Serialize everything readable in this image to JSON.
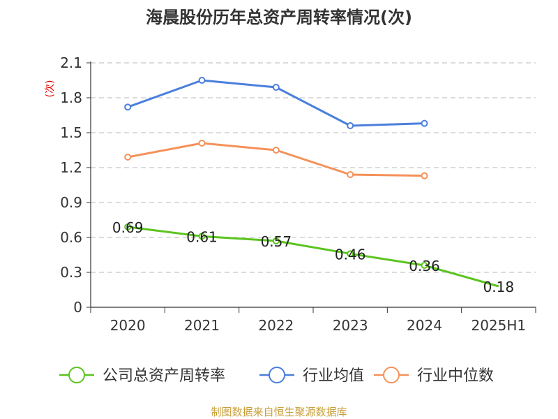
{
  "chart_data": {
    "type": "line",
    "title": "海晨股份历年总资产周转率情况(次)",
    "ylabel": "(次)",
    "xlabel": "",
    "categories": [
      "2020",
      "2021",
      "2022",
      "2023",
      "2024",
      "2025H1"
    ],
    "yticks": [
      "0",
      "0.3",
      "0.6",
      "0.9",
      "1.2",
      "1.5",
      "1.8",
      "2.1"
    ],
    "ylim": [
      0,
      2.1
    ],
    "grid": true,
    "legend_position": "bottom",
    "series": [
      {
        "name": "公司总资产周转率",
        "color": "#5cc41f",
        "values": [
          0.69,
          0.61,
          0.57,
          0.46,
          0.36,
          0.18
        ],
        "labels": [
          "0.69",
          "0.61",
          "0.57",
          "0.46",
          "0.36",
          "0.18"
        ]
      },
      {
        "name": "行业均值",
        "color": "#4a7fdc",
        "values": [
          1.72,
          1.95,
          1.89,
          1.56,
          1.58,
          null
        ]
      },
      {
        "name": "行业中位数",
        "color": "#f5915a",
        "values": [
          1.29,
          1.41,
          1.35,
          1.14,
          1.13,
          null
        ]
      }
    ]
  },
  "source": "制图数据来自恒生聚源数据库"
}
